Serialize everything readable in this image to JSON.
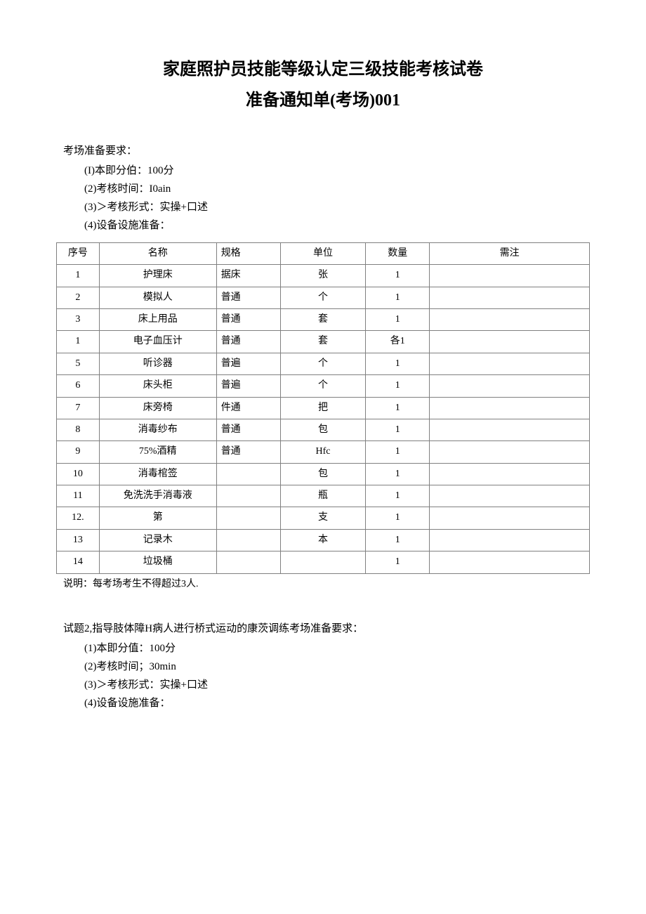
{
  "title": "家庭照护员技能等级认定三级技能考核试卷",
  "subtitle": "准备通知单(考场)001",
  "prep_label": "考场准备要求：",
  "reqs": {
    "r1": "(I)本即分伯：100分",
    "r2": "(2)考核时间：I0ain",
    "r3": "(3)＞考核形式：实操+口述",
    "r4": "(4)设备设施准备："
  },
  "table": {
    "columns": [
      "序号",
      "名称",
      "规格",
      "单位",
      "数量",
      "需注"
    ],
    "rows": [
      [
        "1",
        "护理床",
        "据床",
        "张",
        "1",
        ""
      ],
      [
        "2",
        "模拟人",
        "普通",
        "个",
        "1",
        ""
      ],
      [
        "3",
        "床上用品",
        "普通",
        "套",
        "1",
        ""
      ],
      [
        "1",
        "电子血压计",
        "普通",
        "套",
        "各1",
        ""
      ],
      [
        "5",
        "听诊器",
        "普遍",
        "个",
        "1",
        ""
      ],
      [
        "6",
        "床头柜",
        "普遍",
        "个",
        "1",
        ""
      ],
      [
        "7",
        "床旁椅",
        "件通",
        "把",
        "1",
        ""
      ],
      [
        "8",
        "消毒纱布",
        "普通",
        "包",
        "1",
        ""
      ],
      [
        "9",
        "75%酒精",
        "普通",
        "Hfc",
        "1",
        ""
      ],
      [
        "10",
        "消毒棺签",
        "",
        "包",
        "1",
        ""
      ],
      [
        "11",
        "免洗洗手消毒液",
        "",
        "瓶",
        "1",
        ""
      ],
      [
        "12.",
        "第",
        "",
        "支",
        "1",
        ""
      ],
      [
        "13",
        "记录木",
        "",
        "本",
        "1",
        ""
      ],
      [
        "14",
        "垃圾桶",
        "",
        "",
        "1",
        ""
      ]
    ]
  },
  "table_note": "说明：每考场考生不得超过3人.",
  "section2_label": "试题2,指导肢体障H病人进行桥式运动的康茨调练考场准备要求：",
  "reqs2": {
    "r1": "(1)本即分值：100分",
    "r2": "(2)考核时间；30min",
    "r3": "(3)＞考核形式：实操+口述",
    "r4": "(4)设备设施准备："
  }
}
